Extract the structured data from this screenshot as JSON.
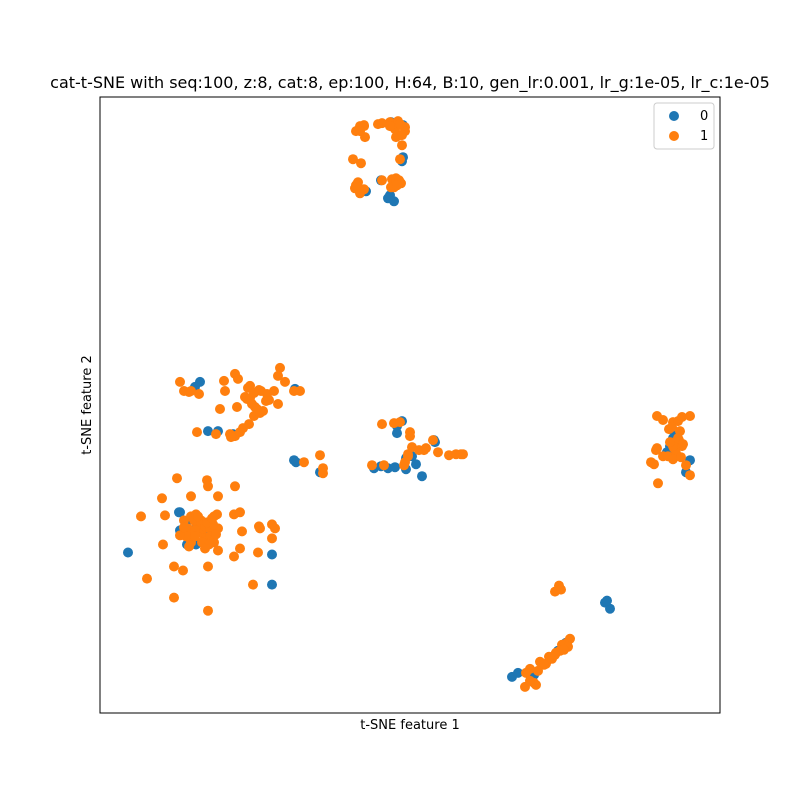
{
  "chart_data": {
    "type": "scatter",
    "title": "cat-t-SNE with seq:100, z:8, cat:8, ep:100, H:64, B:10, gen_lr:0.001, lr_g:1e-05, lr_c:1e-05",
    "xlabel": "t-SNE feature 1",
    "ylabel": "t-SNE feature 2",
    "xlim": [
      0,
      620
    ],
    "ylim": [
      0,
      614
    ],
    "x_ticks": "hidden",
    "y_ticks": "hidden",
    "grid": false,
    "legend_position": "top-right",
    "series": [
      {
        "name": "0",
        "color": "#1f77b4",
        "points": [
          [
            291,
            589
          ],
          [
            296,
            588
          ],
          [
            303,
            586
          ],
          [
            281,
            531
          ],
          [
            302,
            550
          ],
          [
            262,
            520
          ],
          [
            266,
            520
          ],
          [
            290,
            516
          ],
          [
            288,
            513
          ],
          [
            294,
            510
          ],
          [
            303,
            554
          ],
          [
            100,
            330
          ],
          [
            95,
            325
          ],
          [
            195,
            323
          ],
          [
            118,
            281
          ],
          [
            133,
            278
          ],
          [
            108,
            281
          ],
          [
            194,
            252
          ],
          [
            196,
            250
          ],
          [
            28,
            160
          ],
          [
            80,
            200
          ],
          [
            80,
            182
          ],
          [
            87,
            168
          ],
          [
            91,
            174
          ],
          [
            96,
            168
          ],
          [
            93,
            178
          ],
          [
            97,
            186
          ],
          [
            103,
            182
          ],
          [
            106,
            176
          ],
          [
            86,
            189
          ],
          [
            172,
            128
          ],
          [
            172,
            158
          ],
          [
            79,
            200
          ],
          [
            297,
            286
          ],
          [
            302,
            291
          ],
          [
            297,
            279
          ],
          [
            335,
            270
          ],
          [
            334,
            272
          ],
          [
            322,
            236
          ],
          [
            274,
            244
          ],
          [
            281,
            246
          ],
          [
            288,
            244
          ],
          [
            295,
            245
          ],
          [
            306,
            243
          ],
          [
            312,
            256
          ],
          [
            316,
            248
          ],
          [
            306,
            254
          ],
          [
            573,
            282
          ],
          [
            570,
            266
          ],
          [
            573,
            274
          ],
          [
            567,
            260
          ],
          [
            577,
            272
          ],
          [
            590,
            252
          ],
          [
            566,
            258
          ],
          [
            586,
            240
          ],
          [
            220,
            240
          ],
          [
            412,
            36
          ],
          [
            418,
            40
          ],
          [
            430,
            38
          ],
          [
            434,
            38
          ],
          [
            510,
            104
          ],
          [
            505,
            110
          ],
          [
            507,
            112
          ],
          [
            458,
            62
          ],
          [
            466,
            70
          ]
        ]
      },
      {
        "name": "1",
        "color": "#ff7f0e",
        "points": [
          [
            255,
            523
          ],
          [
            282,
            531
          ],
          [
            296,
            533
          ],
          [
            290,
            589
          ],
          [
            298,
            588
          ],
          [
            305,
            584
          ],
          [
            258,
            529
          ],
          [
            264,
            522
          ],
          [
            256,
            526
          ],
          [
            301,
            586
          ],
          [
            260,
            518
          ],
          [
            300,
            552
          ],
          [
            253,
            552
          ],
          [
            305,
            580
          ],
          [
            302,
            566
          ],
          [
            291,
            524
          ],
          [
            300,
            576
          ],
          [
            298,
            590
          ],
          [
            292,
            532
          ],
          [
            296,
            574
          ],
          [
            261,
            548
          ],
          [
            80,
            330
          ],
          [
            84,
            321
          ],
          [
            89,
            320
          ],
          [
            124,
            331
          ],
          [
            135,
            338
          ],
          [
            138,
            333
          ],
          [
            148,
            324
          ],
          [
            150,
            326
          ],
          [
            154,
            319
          ],
          [
            161,
            321
          ],
          [
            180,
            344
          ],
          [
            178,
            336
          ],
          [
            194,
            321
          ],
          [
            200,
            321
          ],
          [
            120,
            303
          ],
          [
            145,
            315
          ],
          [
            125,
            321
          ],
          [
            137,
            305
          ],
          [
            155,
            305
          ],
          [
            147,
            313
          ],
          [
            166,
            311
          ],
          [
            159,
            322
          ],
          [
            167,
            318
          ],
          [
            174,
            321
          ],
          [
            150,
            314
          ],
          [
            152,
            308
          ],
          [
            157,
            303
          ],
          [
            163,
            301
          ],
          [
            91,
            321
          ],
          [
            185,
            330
          ],
          [
            99,
            318
          ],
          [
            97,
            280
          ],
          [
            116,
            278
          ],
          [
            135,
            276
          ],
          [
            130,
            278
          ],
          [
            140,
            280
          ],
          [
            143,
            284
          ],
          [
            149,
            288
          ],
          [
            154,
            296
          ],
          [
            160,
            299
          ],
          [
            169,
            312
          ],
          [
            178,
            308
          ],
          [
            131,
            275
          ],
          [
            77,
            234
          ],
          [
            107,
            232
          ],
          [
            62,
            214
          ],
          [
            91,
            216
          ],
          [
            118,
            216
          ],
          [
            135,
            226
          ],
          [
            108,
            226
          ],
          [
            134,
            198
          ],
          [
            172,
            188
          ],
          [
            41,
            196
          ],
          [
            65,
            197
          ],
          [
            91,
            196
          ],
          [
            117,
            198
          ],
          [
            114,
            196
          ],
          [
            63,
            168
          ],
          [
            134,
            156
          ],
          [
            158,
            160
          ],
          [
            74,
            146
          ],
          [
            108,
            146
          ],
          [
            83,
            142
          ],
          [
            89,
            166
          ],
          [
            153,
            128
          ],
          [
            47,
            134
          ],
          [
            74,
            115
          ],
          [
            108,
            102
          ],
          [
            91,
            170
          ],
          [
            93,
            176
          ],
          [
            88,
            184
          ],
          [
            100,
            186
          ],
          [
            102,
            179
          ],
          [
            106,
            174
          ],
          [
            114,
            170
          ],
          [
            84,
            192
          ],
          [
            96,
            190
          ],
          [
            94,
            192
          ],
          [
            96,
            198
          ],
          [
            98,
            186
          ],
          [
            101,
            192
          ],
          [
            101,
            190
          ],
          [
            103,
            184
          ],
          [
            105,
            186
          ],
          [
            110,
            184
          ],
          [
            110,
            176
          ],
          [
            112,
            172
          ],
          [
            118,
            184
          ],
          [
            140,
            164
          ],
          [
            159,
            186
          ],
          [
            140,
            200
          ],
          [
            175,
            184
          ],
          [
            172,
            174
          ],
          [
            160,
            184
          ],
          [
            86,
            176
          ],
          [
            95,
            182
          ],
          [
            102,
            170
          ],
          [
            109,
            168
          ],
          [
            113,
            188
          ],
          [
            98,
            196
          ],
          [
            95,
            176
          ],
          [
            107,
            190
          ],
          [
            116,
            178
          ],
          [
            80,
            177
          ],
          [
            84,
            185
          ],
          [
            118,
            162
          ],
          [
            142,
            181
          ],
          [
            105,
            164
          ],
          [
            112,
            194
          ],
          [
            204,
            250
          ],
          [
            220,
            257
          ],
          [
            223,
            244
          ],
          [
            223,
            239
          ],
          [
            272,
            247
          ],
          [
            284,
            247
          ],
          [
            294,
            289
          ],
          [
            300,
            290
          ],
          [
            310,
            280
          ],
          [
            308,
            258
          ],
          [
            310,
            276
          ],
          [
            312,
            265
          ],
          [
            319,
            262
          ],
          [
            324,
            262
          ],
          [
            333,
            272
          ],
          [
            338,
            260
          ],
          [
            326,
            264
          ],
          [
            349,
            257
          ],
          [
            356,
            258
          ],
          [
            361,
            258
          ],
          [
            363,
            258
          ],
          [
            304,
            247
          ],
          [
            305,
            250
          ],
          [
            308,
            256
          ],
          [
            282,
            288
          ],
          [
            557,
            296
          ],
          [
            563,
            292
          ],
          [
            573,
            290
          ],
          [
            578,
            291
          ],
          [
            582,
            295
          ],
          [
            590,
            296
          ],
          [
            580,
            281
          ],
          [
            579,
            272
          ],
          [
            576,
            266
          ],
          [
            574,
            264
          ],
          [
            575,
            270
          ],
          [
            582,
            266
          ],
          [
            576,
            259
          ],
          [
            573,
            266
          ],
          [
            570,
            270
          ],
          [
            557,
            264
          ],
          [
            563,
            256
          ],
          [
            568,
            256
          ],
          [
            573,
            253
          ],
          [
            569,
            283
          ],
          [
            572,
            285
          ],
          [
            551,
            250
          ],
          [
            554,
            248
          ],
          [
            556,
            262
          ],
          [
            590,
            237
          ],
          [
            558,
            229
          ],
          [
            586,
            247
          ],
          [
            581,
            255
          ],
          [
            578,
            274
          ],
          [
            583,
            268
          ],
          [
            455,
            121
          ],
          [
            459,
            127
          ],
          [
            461,
            123
          ],
          [
            467,
            70
          ],
          [
            470,
            74
          ],
          [
            462,
            68
          ],
          [
            456,
            60
          ],
          [
            449,
            56
          ],
          [
            440,
            51
          ],
          [
            430,
            44
          ],
          [
            426,
            40
          ],
          [
            434,
            30
          ],
          [
            436,
            28
          ],
          [
            425,
            26
          ],
          [
            446,
            49
          ],
          [
            450,
            54
          ],
          [
            452,
            54
          ],
          [
            460,
            62
          ],
          [
            468,
            66
          ],
          [
            464,
            63
          ],
          [
            444,
            48
          ],
          [
            438,
            42
          ],
          [
            455,
            58
          ],
          [
            430,
            32
          ],
          [
            260,
            585
          ],
          [
            264,
            586
          ],
          [
            256,
            580
          ],
          [
            265,
            574
          ],
          [
            264,
            585
          ],
          [
            260,
            580
          ],
          [
            278,
            587
          ],
          [
            282,
            588
          ],
          [
            295,
            582
          ],
          [
            296,
            530
          ],
          [
            301,
            528
          ],
          [
            299,
            531
          ],
          [
            294,
            524
          ],
          [
            302,
            576
          ],
          [
            300,
            587
          ],
          [
            290,
            585
          ],
          [
            297,
            526
          ]
        ]
      }
    ]
  }
}
